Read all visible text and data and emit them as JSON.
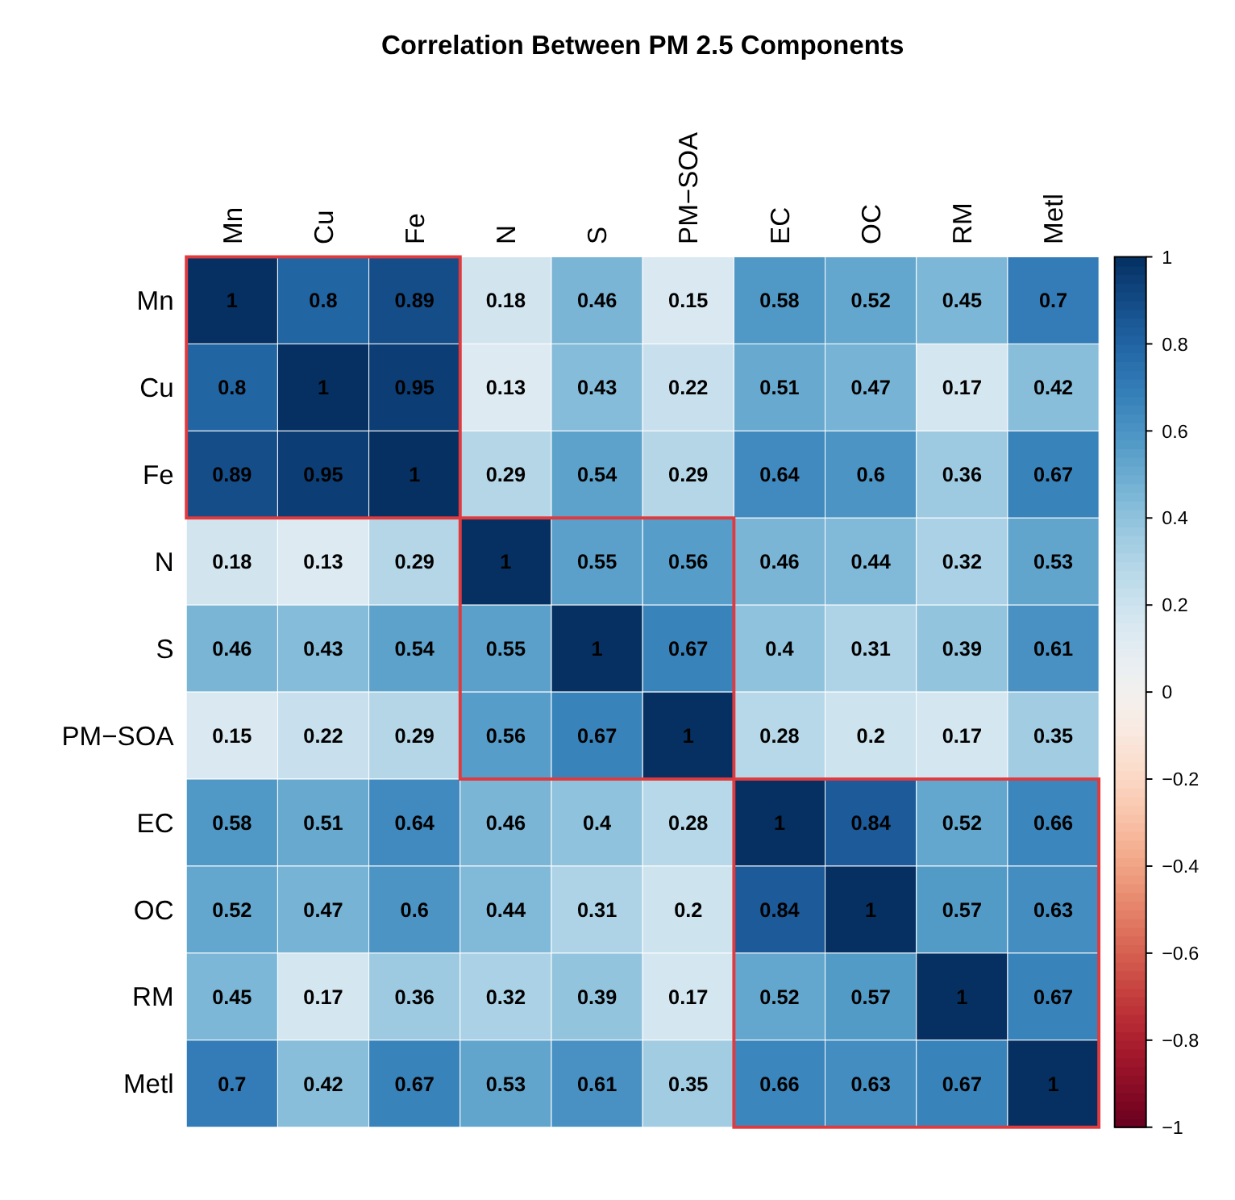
{
  "chart_data": {
    "type": "heatmap",
    "title": "Correlation Between PM 2.5 Components",
    "categories": [
      "Mn",
      "Cu",
      "Fe",
      "N",
      "S",
      "PM−SOA",
      "EC",
      "OC",
      "RM",
      "Metl"
    ],
    "y_categories": [
      "Mn",
      "Cu",
      "Fe",
      "N",
      "S",
      "PM−SOA",
      "EC",
      "OC",
      "RM",
      "Metl"
    ],
    "cells": [
      [
        1,
        0.8,
        0.89,
        0.18,
        0.46,
        0.15,
        0.58,
        0.52,
        0.45,
        0.7
      ],
      [
        0.8,
        1,
        0.95,
        0.13,
        0.43,
        0.22,
        0.51,
        0.47,
        0.17,
        0.42
      ],
      [
        0.89,
        0.95,
        1,
        0.29,
        0.54,
        0.29,
        0.64,
        0.6,
        0.36,
        0.67
      ],
      [
        0.18,
        0.13,
        0.29,
        1,
        0.55,
        0.56,
        0.46,
        0.44,
        0.32,
        0.53
      ],
      [
        0.46,
        0.43,
        0.54,
        0.55,
        1,
        0.67,
        0.4,
        0.31,
        0.39,
        0.61
      ],
      [
        0.15,
        0.22,
        0.29,
        0.56,
        0.67,
        1,
        0.28,
        0.2,
        0.17,
        0.35
      ],
      [
        0.58,
        0.51,
        0.64,
        0.46,
        0.4,
        0.28,
        1,
        0.84,
        0.52,
        0.66
      ],
      [
        0.52,
        0.47,
        0.6,
        0.44,
        0.31,
        0.2,
        0.84,
        1,
        0.57,
        0.63
      ],
      [
        0.45,
        0.17,
        0.36,
        0.32,
        0.39,
        0.17,
        0.52,
        0.57,
        1,
        0.67
      ],
      [
        0.7,
        0.42,
        0.67,
        0.53,
        0.61,
        0.35,
        0.66,
        0.63,
        0.67,
        1
      ]
    ],
    "clim": [
      -1,
      1
    ],
    "cticks": [
      {
        "value": -1,
        "label": "−1"
      },
      {
        "value": -0.8,
        "label": "−0.8"
      },
      {
        "value": -0.6,
        "label": "−0.6"
      },
      {
        "value": -0.4,
        "label": "−0.4"
      },
      {
        "value": -0.2,
        "label": "−0.2"
      },
      0,
      0.2,
      0.4,
      0.6,
      0.8,
      1
    ],
    "data_labels": true
  }
}
